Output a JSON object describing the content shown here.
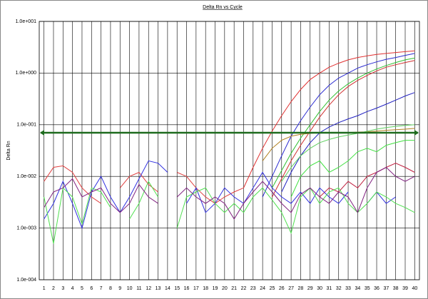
{
  "chart_data": {
    "type": "line",
    "title": "Delta Rn vs Cycle",
    "y_label": "Delta Rn",
    "log_scale": true,
    "grid": true,
    "x": [
      1,
      2,
      3,
      4,
      5,
      6,
      7,
      8,
      9,
      10,
      11,
      12,
      13,
      14,
      15,
      16,
      17,
      18,
      19,
      20,
      21,
      22,
      23,
      24,
      25,
      26,
      27,
      28,
      29,
      30,
      31,
      32,
      33,
      34,
      35,
      36,
      37,
      38,
      39,
      40
    ],
    "xlim": [
      0.5,
      40.5
    ],
    "xticks": [
      1,
      2,
      3,
      4,
      5,
      6,
      7,
      8,
      9,
      10,
      11,
      12,
      13,
      14,
      15,
      16,
      17,
      18,
      19,
      20,
      21,
      22,
      23,
      24,
      25,
      26,
      27,
      28,
      29,
      30,
      31,
      32,
      33,
      34,
      35,
      36,
      37,
      38,
      39,
      40
    ],
    "ylim": [
      0.0001,
      10
    ],
    "yticks": [
      {
        "value": 0.0001,
        "label": "1.0e-004"
      },
      {
        "value": 0.001,
        "label": "1.0e-003"
      },
      {
        "value": 0.01,
        "label": "1.0e-002"
      },
      {
        "value": 0.1,
        "label": "1.0e-001"
      },
      {
        "value": 1,
        "label": "1.0e+000"
      },
      {
        "value": 10,
        "label": "1.0e+001"
      }
    ],
    "threshold": 0.07,
    "threshold_color": "#1e6b1e",
    "series": [
      {
        "color": "#e03030",
        "values": [
          null,
          null,
          null,
          null,
          null,
          null,
          null,
          null,
          null,
          null,
          null,
          null,
          null,
          null,
          null,
          null,
          null,
          null,
          null,
          null,
          null,
          0.006,
          0.015,
          0.035,
          0.075,
          0.15,
          0.28,
          0.48,
          0.75,
          1.0,
          1.3,
          1.55,
          1.8,
          2.0,
          2.15,
          2.3,
          2.4,
          2.5,
          2.6,
          2.7
        ]
      },
      {
        "color": "#2a2ad0",
        "values": [
          null,
          null,
          null,
          null,
          null,
          null,
          null,
          null,
          null,
          null,
          null,
          null,
          null,
          null,
          null,
          null,
          null,
          null,
          null,
          null,
          null,
          null,
          null,
          0.004,
          0.01,
          0.025,
          0.06,
          0.12,
          0.22,
          0.38,
          0.58,
          0.8,
          1.0,
          1.25,
          1.45,
          1.65,
          1.85,
          2.0,
          2.2,
          2.4
        ]
      },
      {
        "color": "#30c030",
        "values": [
          null,
          null,
          null,
          null,
          null,
          null,
          null,
          null,
          null,
          null,
          null,
          null,
          null,
          null,
          null,
          null,
          null,
          null,
          null,
          null,
          null,
          null,
          null,
          null,
          0.006,
          0.013,
          0.028,
          0.055,
          0.1,
          0.18,
          0.3,
          0.45,
          0.62,
          0.8,
          1.0,
          1.2,
          1.4,
          1.6,
          1.8,
          1.95
        ]
      },
      {
        "color": "#d03030",
        "values": [
          null,
          null,
          null,
          null,
          null,
          null,
          null,
          null,
          null,
          null,
          null,
          null,
          null,
          null,
          null,
          null,
          null,
          null,
          null,
          null,
          null,
          null,
          null,
          null,
          0.004,
          0.009,
          0.02,
          0.04,
          0.075,
          0.14,
          0.24,
          0.38,
          0.55,
          0.72,
          0.9,
          1.1,
          1.3,
          1.45,
          1.6,
          1.75
        ]
      },
      {
        "color": "#2020c0",
        "values": [
          null,
          null,
          null,
          null,
          null,
          null,
          null,
          null,
          null,
          null,
          null,
          null,
          null,
          null,
          null,
          null,
          null,
          null,
          null,
          null,
          null,
          null,
          null,
          null,
          null,
          0.005,
          0.012,
          0.025,
          0.045,
          0.07,
          0.09,
          0.11,
          0.13,
          0.15,
          0.18,
          0.21,
          0.25,
          0.3,
          0.36,
          0.42
        ]
      },
      {
        "color": "#b08020",
        "values": [
          null,
          null,
          null,
          null,
          null,
          null,
          null,
          null,
          null,
          null,
          null,
          null,
          null,
          null,
          null,
          null,
          null,
          null,
          null,
          null,
          null,
          null,
          null,
          0.02,
          0.035,
          0.05,
          0.06,
          0.065,
          0.068,
          0.07,
          0.07,
          0.07,
          0.071,
          0.072,
          0.073,
          0.075,
          0.078,
          0.08,
          0.082,
          0.085
        ]
      },
      {
        "color": "#60d060",
        "values": [
          null,
          null,
          null,
          null,
          null,
          null,
          null,
          null,
          null,
          null,
          null,
          null,
          null,
          null,
          null,
          null,
          null,
          null,
          null,
          null,
          null,
          null,
          null,
          null,
          null,
          0.008,
          0.015,
          0.025,
          0.035,
          0.045,
          0.052,
          0.058,
          0.063,
          0.068,
          0.075,
          0.082,
          0.088,
          0.093,
          0.097,
          0.1
        ]
      },
      {
        "color": "#40e040",
        "values": [
          null,
          null,
          null,
          null,
          null,
          null,
          null,
          null,
          null,
          null,
          null,
          null,
          null,
          null,
          null,
          null,
          null,
          null,
          null,
          null,
          null,
          null,
          null,
          null,
          null,
          null,
          0.004,
          0.01,
          0.016,
          0.02,
          0.012,
          0.015,
          0.02,
          0.03,
          0.035,
          0.03,
          0.04,
          0.045,
          0.05,
          0.05
        ]
      },
      {
        "color": "#c02040",
        "values": [
          null,
          null,
          null,
          null,
          null,
          null,
          null,
          null,
          null,
          null,
          null,
          null,
          null,
          null,
          null,
          null,
          null,
          null,
          null,
          null,
          null,
          null,
          null,
          null,
          null,
          null,
          null,
          null,
          null,
          0.004,
          0.006,
          0.005,
          0.008,
          0.006,
          0.01,
          0.012,
          0.015,
          0.018,
          0.015,
          0.012
        ]
      },
      {
        "color": "#e04040",
        "values": [
          0.008,
          0.015,
          0.016,
          0.012,
          0.006,
          0.004,
          0.003,
          null,
          0.006,
          0.01,
          0.012,
          0.007,
          0.005,
          null,
          0.012,
          0.01,
          0.006,
          0.004,
          0.003,
          0.004,
          0.005,
          0.006,
          null,
          null,
          null,
          null,
          null,
          null,
          null,
          null,
          null,
          null,
          null,
          null,
          null,
          null,
          null,
          null,
          null,
          null
        ]
      },
      {
        "color": "#3030e0",
        "values": [
          0.0015,
          0.003,
          0.008,
          0.003,
          0.001,
          0.005,
          0.01,
          0.004,
          0.002,
          0.004,
          0.009,
          0.02,
          0.018,
          0.012,
          null,
          0.003,
          0.006,
          0.002,
          0.003,
          0.006,
          0.004,
          0.003,
          0.006,
          0.012,
          0.006,
          0.004,
          0.003,
          0.005,
          0.003,
          0.006,
          0.004,
          0.003,
          0.005,
          null,
          0.003,
          0.005,
          0.003,
          0.004,
          null,
          null
        ]
      },
      {
        "color": "#50e050",
        "values": [
          0.004,
          0.0005,
          0.006,
          0.004,
          0.0012,
          0.006,
          0.005,
          0.0025,
          null,
          0.0015,
          0.003,
          0.008,
          0.004,
          null,
          0.001,
          0.004,
          0.005,
          0.006,
          0.003,
          0.002,
          0.003,
          0.002,
          0.004,
          0.006,
          0.0035,
          0.002,
          0.0008,
          0.004,
          0.006,
          0.003,
          0.005,
          0.006,
          0.003,
          0.002,
          0.003,
          0.005,
          0.004,
          0.003,
          0.0025,
          0.002
        ]
      },
      {
        "color": "#802080",
        "values": [
          0.0025,
          0.005,
          0.006,
          0.009,
          0.004,
          0.005,
          0.006,
          0.003,
          0.002,
          0.003,
          0.007,
          0.004,
          0.003,
          null,
          0.004,
          0.006,
          0.004,
          0.003,
          0.004,
          0.003,
          0.0015,
          0.003,
          0.005,
          0.008,
          0.005,
          0.003,
          0.002,
          0.0045,
          0.006,
          0.004,
          0.003,
          0.005,
          0.004,
          0.002,
          0.006,
          0.012,
          0.015,
          0.01,
          0.008,
          0.01
        ]
      }
    ]
  }
}
